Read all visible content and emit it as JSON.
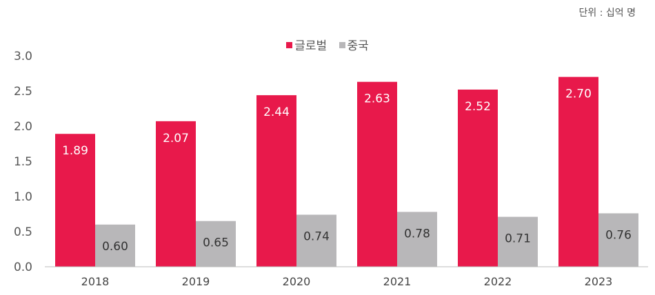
{
  "chart_data": {
    "type": "bar",
    "title": "",
    "unit_label": "단위 : 십억 명",
    "categories": [
      "2018",
      "2019",
      "2020",
      "2021",
      "2022",
      "2023"
    ],
    "series": [
      {
        "name": "글로벌",
        "color": "#E8194B",
        "values": [
          1.89,
          2.07,
          2.44,
          2.63,
          2.52,
          2.7
        ],
        "labels": [
          "1.89",
          "2.07",
          "2.44",
          "2.63",
          "2.52",
          "2.70"
        ]
      },
      {
        "name": "중국",
        "color": "#B8B7B9",
        "values": [
          0.6,
          0.65,
          0.74,
          0.78,
          0.71,
          0.76
        ],
        "labels": [
          "0.60",
          "0.65",
          "0.74",
          "0.78",
          "0.71",
          "0.76"
        ]
      }
    ],
    "ylim": [
      0,
      3.0
    ],
    "yticks": [
      "0.0",
      "0.5",
      "1.0",
      "1.5",
      "2.0",
      "2.5",
      "3.0"
    ],
    "xlabel": "",
    "ylabel": "",
    "grid": false,
    "legend": "top-center"
  }
}
